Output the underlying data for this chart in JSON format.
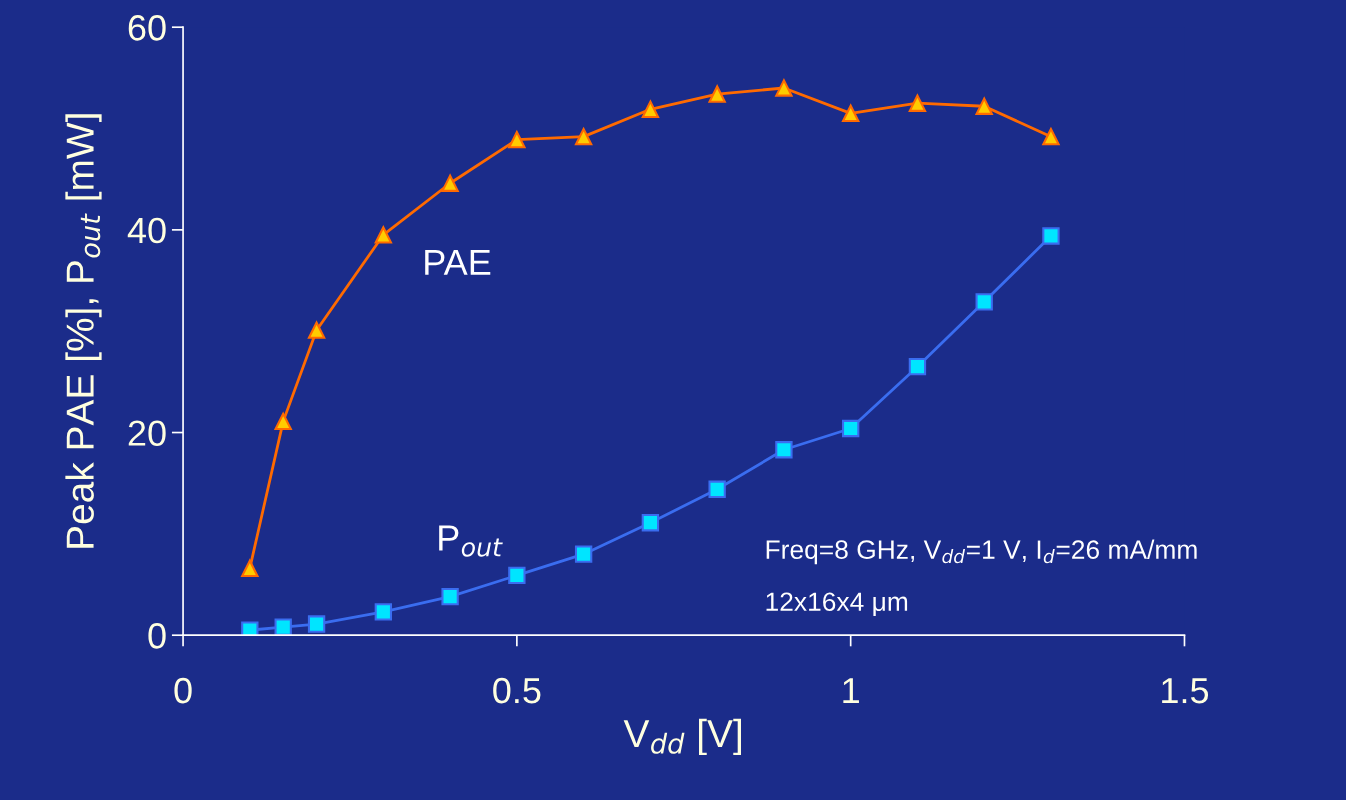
{
  "chart_data": {
    "type": "line",
    "xlabel": "V$_{dd}$ [V]",
    "ylabel": "Peak PAE [%], P$_{out}$ [mW]",
    "xlim": [
      0,
      1.5
    ],
    "xticks": [
      0,
      0.5,
      1,
      1.5
    ],
    "ylim": [
      0,
      60
    ],
    "yticks": [
      0,
      20,
      40,
      60
    ],
    "grid": false,
    "legend": false,
    "series": [
      {
        "name": "PAE",
        "color": "#ff6a00",
        "marker": "triangle",
        "x": [
          0.1,
          0.15,
          0.2,
          0.3,
          0.4,
          0.5,
          0.6,
          0.7,
          0.8,
          0.9,
          1.0,
          1.1,
          1.2,
          1.3
        ],
        "values": [
          6.6,
          21.1,
          30.1,
          39.5,
          44.6,
          48.9,
          49.2,
          51.9,
          53.4,
          54.0,
          51.5,
          52.5,
          52.2,
          49.2
        ]
      },
      {
        "name": "P$_{out}$",
        "color": "#3a6df0",
        "marker": "square",
        "x": [
          0.1,
          0.15,
          0.2,
          0.3,
          0.4,
          0.5,
          0.6,
          0.7,
          0.8,
          0.9,
          1.0,
          1.1,
          1.2,
          1.3
        ],
        "values": [
          0.5,
          0.8,
          1.1,
          2.3,
          3.8,
          5.9,
          8.0,
          11.1,
          14.4,
          18.3,
          20.4,
          26.5,
          32.9,
          39.4
        ]
      }
    ],
    "annotations": [
      "Freq=8 GHz, V$_{dd}$=1 V, I$_{d}$=26 mA/mm",
      "12x16x4 μm"
    ]
  }
}
